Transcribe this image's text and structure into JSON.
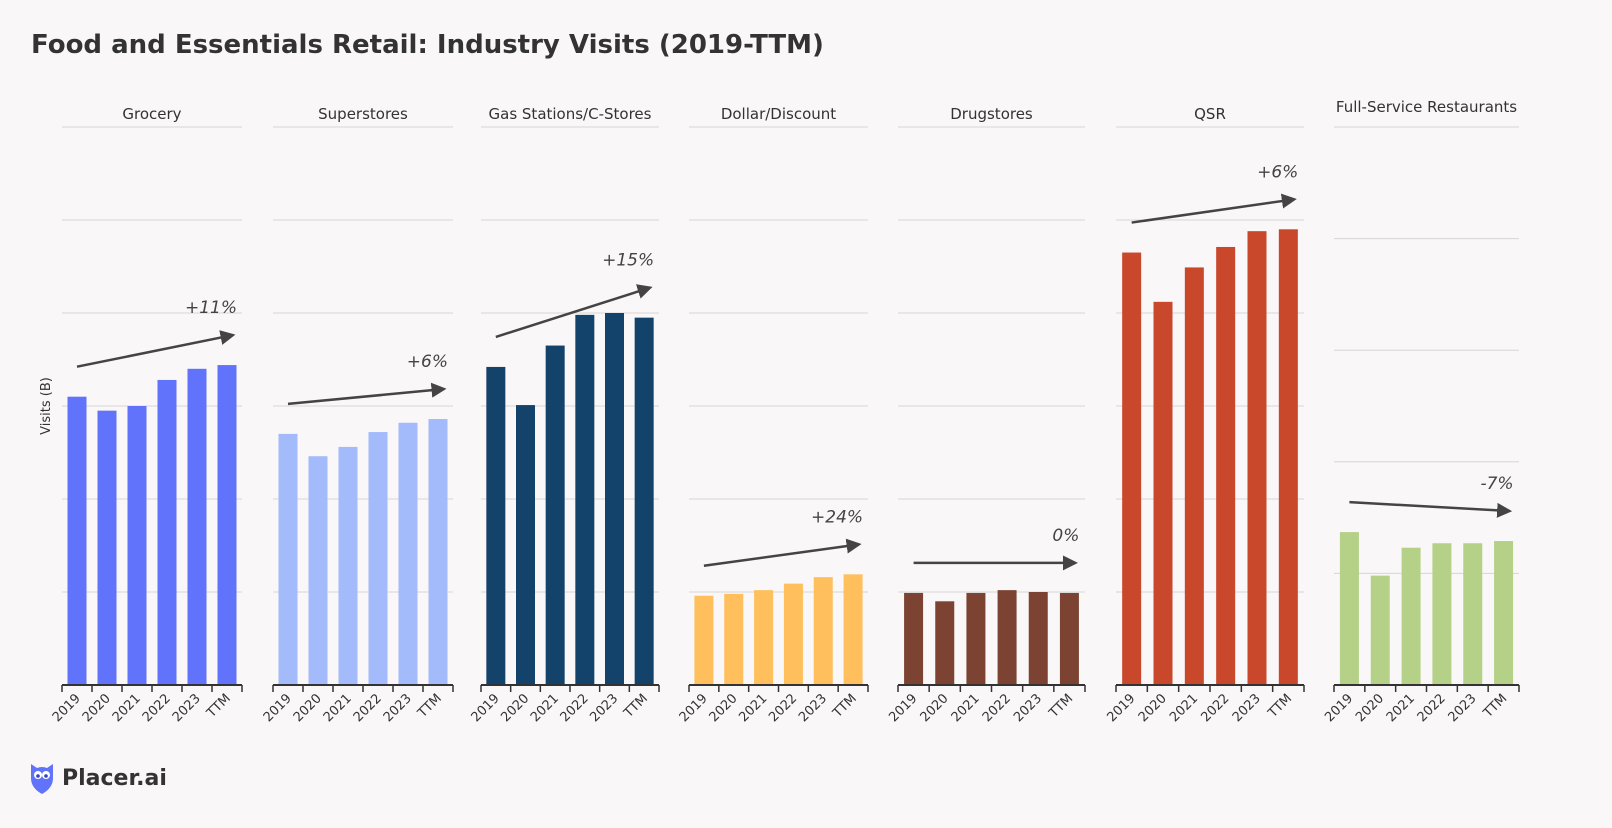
{
  "title": "Food and Essentials Retail: Industry Visits (2019-TTM)",
  "brand": "Placer.ai",
  "chart_data": {
    "type": "bar",
    "title": "Food and Essentials Retail: Industry Visits (2019-TTM)",
    "ylabel": "Visits (B)",
    "grid": true,
    "categories": [
      "2019",
      "2020",
      "2021",
      "2022",
      "2023",
      "TTM"
    ],
    "note": "",
    "panels": [
      {
        "name": "Grocery",
        "color": "#6172fb",
        "change": "+11%",
        "ylim": [
          0,
          6
        ],
        "values": [
          3.1,
          2.95,
          3.0,
          3.28,
          3.4,
          3.44
        ]
      },
      {
        "name": "Superstores",
        "color": "#a4bbfb",
        "change": "+6%",
        "ylim": [
          0,
          6
        ],
        "values": [
          2.7,
          2.46,
          2.56,
          2.72,
          2.82,
          2.86
        ]
      },
      {
        "name": "Gas Stations/C-Stores",
        "color": "#13436b",
        "change": "+15%",
        "ylim": [
          0,
          6
        ],
        "values": [
          3.42,
          3.01,
          3.65,
          3.98,
          4.0,
          3.95
        ]
      },
      {
        "name": "Dollar/Discount",
        "color": "#ffbf5c",
        "change": "+24%",
        "ylim": [
          0,
          6
        ],
        "values": [
          0.96,
          0.98,
          1.02,
          1.09,
          1.16,
          1.19
        ]
      },
      {
        "name": "Drugstores",
        "color": "#7c4332",
        "change": "0%",
        "ylim": [
          0,
          6
        ],
        "values": [
          0.99,
          0.9,
          0.99,
          1.02,
          1.0,
          0.99
        ]
      },
      {
        "name": "QSR",
        "color": "#c9472a",
        "change": "+6%",
        "ylim": [
          0,
          6
        ],
        "values": [
          4.65,
          4.12,
          4.49,
          4.71,
          4.88,
          4.9
        ]
      },
      {
        "name": "Full-Service Restaurants",
        "color": "#b5d087",
        "change": "-7%",
        "ylim": [
          0,
          5
        ],
        "values": [
          1.37,
          0.98,
          1.23,
          1.27,
          1.27,
          1.29
        ]
      }
    ]
  }
}
